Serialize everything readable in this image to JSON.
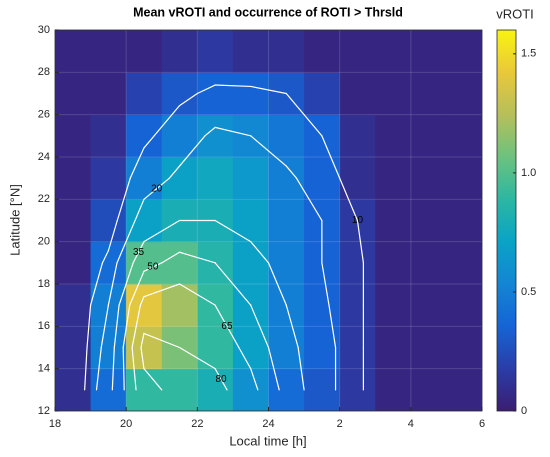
{
  "chart_data": {
    "type": "heatmap",
    "title": "Mean vROTI and occurrence of ROTI > Thrsld",
    "x_label": "Local time [h]",
    "y_label": "Latitude [°N]",
    "colorbar_label": "vROTI",
    "xlim": [
      18,
      30
    ],
    "xticks": [
      18,
      20,
      22,
      24,
      {
        "value": 26,
        "label": "2"
      },
      {
        "value": 28,
        "label": "4"
      },
      {
        "value": 30,
        "label": "6"
      }
    ],
    "ylim": [
      12,
      30
    ],
    "yticks": [
      12,
      14,
      16,
      18,
      20,
      22,
      24,
      26,
      28,
      30
    ],
    "clim": [
      0,
      1.6
    ],
    "cticks": [
      0,
      0.5,
      {
        "value": 1,
        "label": "1.0"
      },
      1.5
    ],
    "grid": true,
    "colormap": [
      "#3b1d72",
      "#2a3da8",
      "#1564d6",
      "#1385d4",
      "#0aa3c6",
      "#2cb7a2",
      "#6cc27e",
      "#b6bf5a",
      "#e9c83a",
      "#f9f40f"
    ],
    "contour_color": "#ffffff",
    "x": [
      18.5,
      19.5,
      20.5,
      21.5,
      22.5,
      23.5,
      24.5,
      25.5,
      26.5,
      27.5,
      28.5,
      29.5
    ],
    "y": [
      13,
      15,
      17,
      19,
      21,
      23,
      25,
      27,
      29
    ],
    "z": [
      [
        0.1,
        0.4,
        0.9,
        0.9,
        0.8,
        0.6,
        0.4,
        0.3,
        0.15,
        0.05,
        0.05,
        0.05
      ],
      [
        0.1,
        0.5,
        1.3,
        1.1,
        0.9,
        0.7,
        0.5,
        0.35,
        0.15,
        0.05,
        0.05,
        0.05
      ],
      [
        0.1,
        0.5,
        1.4,
        1.2,
        0.9,
        0.7,
        0.5,
        0.35,
        0.15,
        0.05,
        0.05,
        0.05
      ],
      [
        0.05,
        0.4,
        1.0,
        1.0,
        0.85,
        0.7,
        0.5,
        0.35,
        0.15,
        0.05,
        0.05,
        0.05
      ],
      [
        0.05,
        0.25,
        0.7,
        0.8,
        0.8,
        0.7,
        0.5,
        0.35,
        0.15,
        0.05,
        0.05,
        0.05
      ],
      [
        0.05,
        0.15,
        0.5,
        0.7,
        0.75,
        0.65,
        0.5,
        0.35,
        0.1,
        0.05,
        0.05,
        0.05
      ],
      [
        0.05,
        0.1,
        0.35,
        0.5,
        0.6,
        0.55,
        0.45,
        0.35,
        0.1,
        0.05,
        0.05,
        0.05
      ],
      [
        0.05,
        0.05,
        0.2,
        0.3,
        0.35,
        0.35,
        0.3,
        0.2,
        0.05,
        0.05,
        0.05,
        0.05
      ],
      [
        0.05,
        0.05,
        0.05,
        0.1,
        0.15,
        0.1,
        0.1,
        0.05,
        0.05,
        0.05,
        0.05,
        0.05
      ]
    ],
    "contour_levels": [
      10,
      20,
      35,
      50,
      65,
      80
    ],
    "occurrence": [
      [
        0,
        30,
        75,
        85,
        85,
        70,
        45,
        25,
        12,
        0,
        0,
        0
      ],
      [
        0,
        25,
        85,
        80,
        75,
        60,
        40,
        25,
        12,
        0,
        0,
        0
      ],
      [
        0,
        20,
        70,
        75,
        65,
        50,
        35,
        22,
        12,
        0,
        0,
        0
      ],
      [
        0,
        12,
        45,
        55,
        50,
        40,
        30,
        20,
        12,
        0,
        0,
        0
      ],
      [
        0,
        5,
        25,
        35,
        35,
        30,
        25,
        20,
        10,
        0,
        0,
        0
      ],
      [
        0,
        2,
        15,
        22,
        25,
        25,
        22,
        15,
        5,
        0,
        0,
        0
      ],
      [
        0,
        0,
        8,
        15,
        22,
        20,
        15,
        10,
        2,
        0,
        0,
        0
      ],
      [
        0,
        0,
        2,
        8,
        12,
        12,
        10,
        3,
        0,
        0,
        0,
        0
      ],
      [
        0,
        0,
        0,
        0,
        2,
        0,
        0,
        0,
        0,
        0,
        0,
        0
      ]
    ]
  }
}
